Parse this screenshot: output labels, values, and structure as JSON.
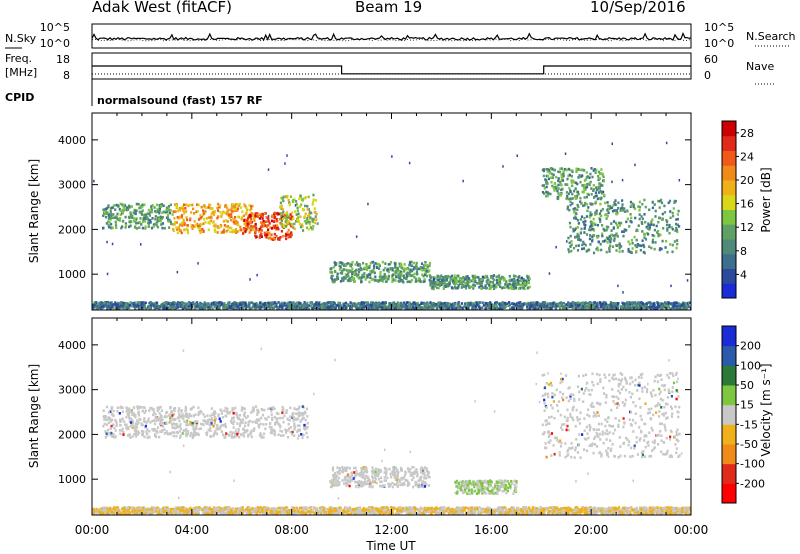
{
  "header": {
    "station": "Adak West (fitACF)",
    "beam": "Beam 19",
    "date": "10/Sep/2016"
  },
  "status_panel": {
    "nsky_label": "N.Sky",
    "nsearch_label": "N.Search",
    "left_ticks": [
      "10^5",
      "10^0"
    ],
    "right_ticks": [
      "10^5",
      "10^0"
    ],
    "freq_label": "Freq.",
    "freq_unit": "[MHz]",
    "freq_ticks": [
      "18",
      "8"
    ],
    "nave_label": "Nave",
    "nave_ticks": [
      "60",
      "0"
    ],
    "cpid_label": "CPID",
    "cpid_text": "normalsound (fast) 157 RF",
    "freq_steps": [
      {
        "t": 0,
        "freq": 13
      },
      {
        "t": 10,
        "freq": 10
      },
      {
        "t": 18.1,
        "freq": 13
      }
    ]
  },
  "chart_data": [
    {
      "type": "heatmap",
      "quantity": "power",
      "xlabel": "Time UT",
      "ylabel": "Slant Range [km]",
      "xticks": [
        "00:00",
        "04:00",
        "08:00",
        "12:00",
        "16:00",
        "20:00",
        "00:00"
      ],
      "xlim": [
        0,
        24
      ],
      "ylim": [
        200,
        4600
      ],
      "yticks": [
        1000,
        2000,
        3000,
        4000
      ],
      "colorbar": {
        "label": "Power [dB]",
        "ticks": [
          4,
          8,
          12,
          16,
          20,
          24,
          28
        ],
        "range": [
          0,
          30
        ],
        "colors": [
          "#1a2cd8",
          "#2c4a9c",
          "#3d6e8e",
          "#4f8a78",
          "#5fa065",
          "#7cc640",
          "#d8d817",
          "#f0b01a",
          "#f08a19",
          "#f05a18",
          "#e02a1a",
          "#cc0000"
        ]
      },
      "regions": [
        {
          "t0": 0.4,
          "t1": 3.2,
          "r0": 2050,
          "r1": 2600,
          "level": 10
        },
        {
          "t0": 3.2,
          "t1": 6.5,
          "r0": 1950,
          "r1": 2600,
          "level": 20
        },
        {
          "t0": 6.0,
          "t1": 8.0,
          "r0": 1800,
          "r1": 2400,
          "level": 26
        },
        {
          "t0": 7.5,
          "t1": 9.0,
          "r0": 2000,
          "r1": 2800,
          "level": 14
        },
        {
          "t0": 9.5,
          "t1": 13.5,
          "r0": 850,
          "r1": 1300,
          "level": 10
        },
        {
          "t0": 13.5,
          "t1": 17.5,
          "r0": 700,
          "r1": 1000,
          "level": 9
        },
        {
          "t0": 18.0,
          "t1": 20.5,
          "r0": 2700,
          "r1": 3400,
          "level": 10
        },
        {
          "t0": 19.0,
          "t1": 23.5,
          "r0": 1500,
          "r1": 2700,
          "level": 9
        },
        {
          "t0": 0.0,
          "t1": 24.0,
          "r0": 250,
          "r1": 400,
          "level": 6
        }
      ]
    },
    {
      "type": "heatmap",
      "quantity": "velocity",
      "xlabel": "Time UT",
      "ylabel": "Slant Range [km]",
      "xticks": [
        "00:00",
        "04:00",
        "08:00",
        "12:00",
        "16:00",
        "20:00",
        "00:00"
      ],
      "xlim": [
        0,
        24
      ],
      "ylim": [
        200,
        4600
      ],
      "yticks": [
        1000,
        2000,
        3000,
        4000
      ],
      "colorbar": {
        "label": "Velocity [m s⁻¹]",
        "ticks": [
          "200",
          "100",
          "50",
          "15",
          "-15",
          "-50",
          "-100",
          "-200"
        ],
        "colors": [
          "#1a2cd8",
          "#2a5aa8",
          "#2c7a3a",
          "#7cc640",
          "#c8c8c8",
          "#f0b01a",
          "#f08a19",
          "#e02a1a",
          "#ff0000"
        ]
      },
      "regions": [
        {
          "t0": 0.4,
          "t1": 8.6,
          "r0": 1950,
          "r1": 2650,
          "level": "grey"
        },
        {
          "t0": 9.5,
          "t1": 13.5,
          "r0": 850,
          "r1": 1300,
          "level": "grey"
        },
        {
          "t0": 14.5,
          "t1": 17.0,
          "r0": 700,
          "r1": 1000,
          "level": "green"
        },
        {
          "t0": 18.0,
          "t1": 23.5,
          "r0": 1500,
          "r1": 3400,
          "level": "grey"
        },
        {
          "t0": 0.0,
          "t1": 24.0,
          "r0": 250,
          "r1": 400,
          "level": "orange"
        }
      ]
    }
  ]
}
